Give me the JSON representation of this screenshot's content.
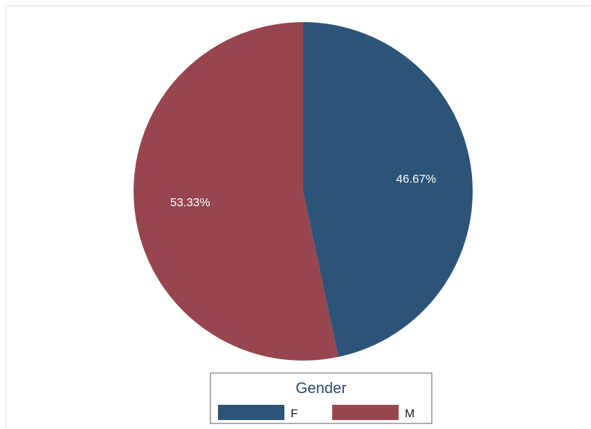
{
  "chart_data": {
    "type": "pie",
    "categories": [
      "F",
      "M"
    ],
    "values": [
      46.67,
      53.33
    ],
    "labels": [
      "46.67%",
      "53.33%"
    ],
    "colors": [
      "#2c5478",
      "#97464e"
    ],
    "start_angle_deg": 0,
    "direction": "clockwise",
    "legend": {
      "title": "Gender",
      "placement": "bottom",
      "entries": [
        "F",
        "M"
      ]
    }
  }
}
